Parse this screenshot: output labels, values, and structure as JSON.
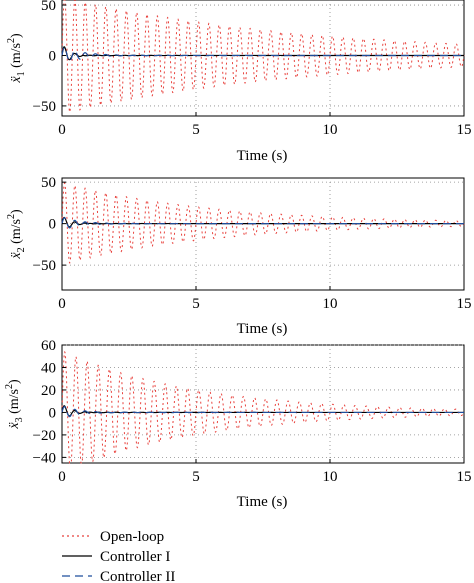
{
  "chart_data": [
    {
      "type": "line",
      "xlabel": "Time (s)",
      "ylabel": {
        "main": "ẍ",
        "sub": "1",
        "unit": "(m/s",
        "sup": "2",
        "close": ")"
      },
      "xlim": [
        0,
        15
      ],
      "ylim": [
        -60,
        55
      ],
      "xticks": [
        "0",
        "5",
        "10",
        "15"
      ],
      "yticks": [
        "50",
        "0",
        "−50"
      ],
      "ytick_values": [
        50,
        0,
        -50
      ],
      "grid": true,
      "series": [
        {
          "name": "Open-loop",
          "model": "damped-oscillation",
          "amplitude": 58,
          "decay": 0.11,
          "frequency_hz": 2.6,
          "final_amplitude": 10
        },
        {
          "name": "Controller I",
          "model": "transient-then-flat",
          "peak": 12,
          "settle_time": 0.8,
          "final_value": 0
        },
        {
          "name": "Controller II",
          "model": "transient-then-flat",
          "peak": 9,
          "settle_time": 2.2,
          "final_value": 0
        }
      ]
    },
    {
      "type": "line",
      "xlabel": "Time (s)",
      "ylabel": {
        "main": "ẍ",
        "sub": "2",
        "unit": "(m/s",
        "sup": "2",
        "close": ")"
      },
      "xlim": [
        0,
        15
      ],
      "ylim": [
        -80,
        55
      ],
      "xticks": [
        "0",
        "5",
        "10",
        "15"
      ],
      "yticks": [
        "50",
        "0",
        "−50"
      ],
      "ytick_values": [
        50,
        0,
        -50
      ],
      "grid": true,
      "series": [
        {
          "name": "Open-loop",
          "model": "damped-oscillation",
          "amplitude": 50,
          "decay": 0.18,
          "frequency_hz": 2.6,
          "final_amplitude": 3
        },
        {
          "name": "Controller I",
          "model": "transient-then-flat",
          "peak": 10,
          "settle_time": 0.9,
          "final_value": 0
        },
        {
          "name": "Controller II",
          "model": "transient-then-flat",
          "peak": 8,
          "settle_time": 2.0,
          "final_value": 0
        }
      ]
    },
    {
      "type": "line",
      "xlabel": "Time (s)",
      "ylabel": {
        "main": "ẍ",
        "sub": "3",
        "unit": "(m/s",
        "sup": "2",
        "close": ")"
      },
      "xlim": [
        0,
        15
      ],
      "ylim": [
        -45,
        60
      ],
      "xticks": [
        "0",
        "5",
        "10",
        "15"
      ],
      "yticks": [
        "60",
        "40",
        "20",
        "0",
        "−20",
        "−40"
      ],
      "ytick_values": [
        60,
        40,
        20,
        0,
        -20,
        -40
      ],
      "grid": true,
      "series": [
        {
          "name": "Open-loop",
          "model": "damped-oscillation",
          "amplitude": 55,
          "decay": 0.2,
          "frequency_hz": 2.4,
          "final_amplitude": 2
        },
        {
          "name": "Controller I",
          "model": "transient-then-flat",
          "peak": 8,
          "settle_time": 0.9,
          "final_value": 0
        },
        {
          "name": "Controller II",
          "model": "transient-then-flat",
          "peak": 6,
          "settle_time": 1.8,
          "final_value": 0
        }
      ]
    }
  ],
  "legend": {
    "placement": "bottom-left",
    "items": [
      {
        "label": "Open-loop",
        "color": "#e8413c",
        "dash": "2,3"
      },
      {
        "label": "Controller I",
        "color": "#000000",
        "dash": ""
      },
      {
        "label": "Controller II",
        "color": "#1f4e9c",
        "dash": "8,5"
      }
    ]
  },
  "colors": {
    "open_loop": "#e8413c",
    "controller_1": "#000000",
    "controller_2": "#1f4e9c",
    "grid": "#888888"
  }
}
